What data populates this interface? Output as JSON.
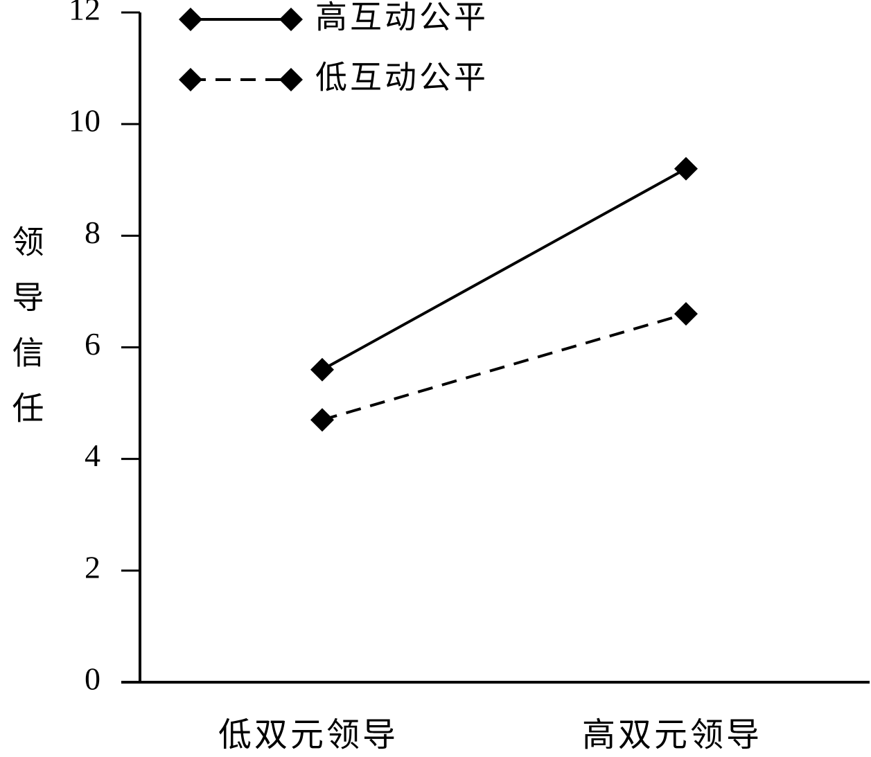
{
  "chart_data": {
    "type": "line",
    "y_label": "领导信任",
    "categories": [
      "低双元领导",
      "高双元领导"
    ],
    "series": [
      {
        "name": "高互动公平",
        "color": "#000000",
        "linestyle": "solid",
        "values": [
          5.6,
          9.2
        ]
      },
      {
        "name": "低互动公平",
        "color": "#000000",
        "linestyle": "dashed",
        "values": [
          4.7,
          6.6
        ]
      }
    ],
    "ylim": [
      0,
      12
    ],
    "yticks": [
      0,
      2,
      4,
      6,
      8,
      10,
      12
    ],
    "grid": false,
    "legend": "upper left"
  }
}
